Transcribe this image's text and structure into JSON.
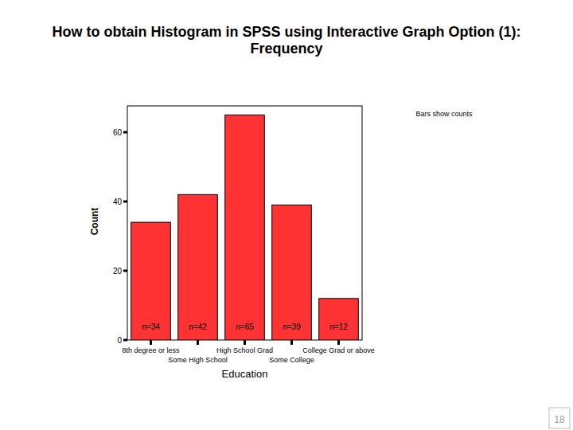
{
  "chart_data": {
    "type": "bar",
    "title": "How to obtain Histogram in SPSS using Interactive Graph Option (1): Frequency",
    "annotation": "Bars show counts",
    "x_label": "Education",
    "y_label": "Count",
    "categories": [
      "8th degree or less",
      "Some High School",
      "High School Grad",
      "Some College",
      "College Grad or above"
    ],
    "values": [
      34,
      42,
      65,
      39,
      12
    ],
    "value_labels": [
      "n=34",
      "n=42",
      "n=65",
      "n=39",
      "n=12"
    ],
    "data_labels": true,
    "color": "#ff3333",
    "ylim": [
      0,
      67.6
    ],
    "yticks": [
      0,
      20,
      40,
      60
    ],
    "grid": false
  },
  "page_number": "18"
}
